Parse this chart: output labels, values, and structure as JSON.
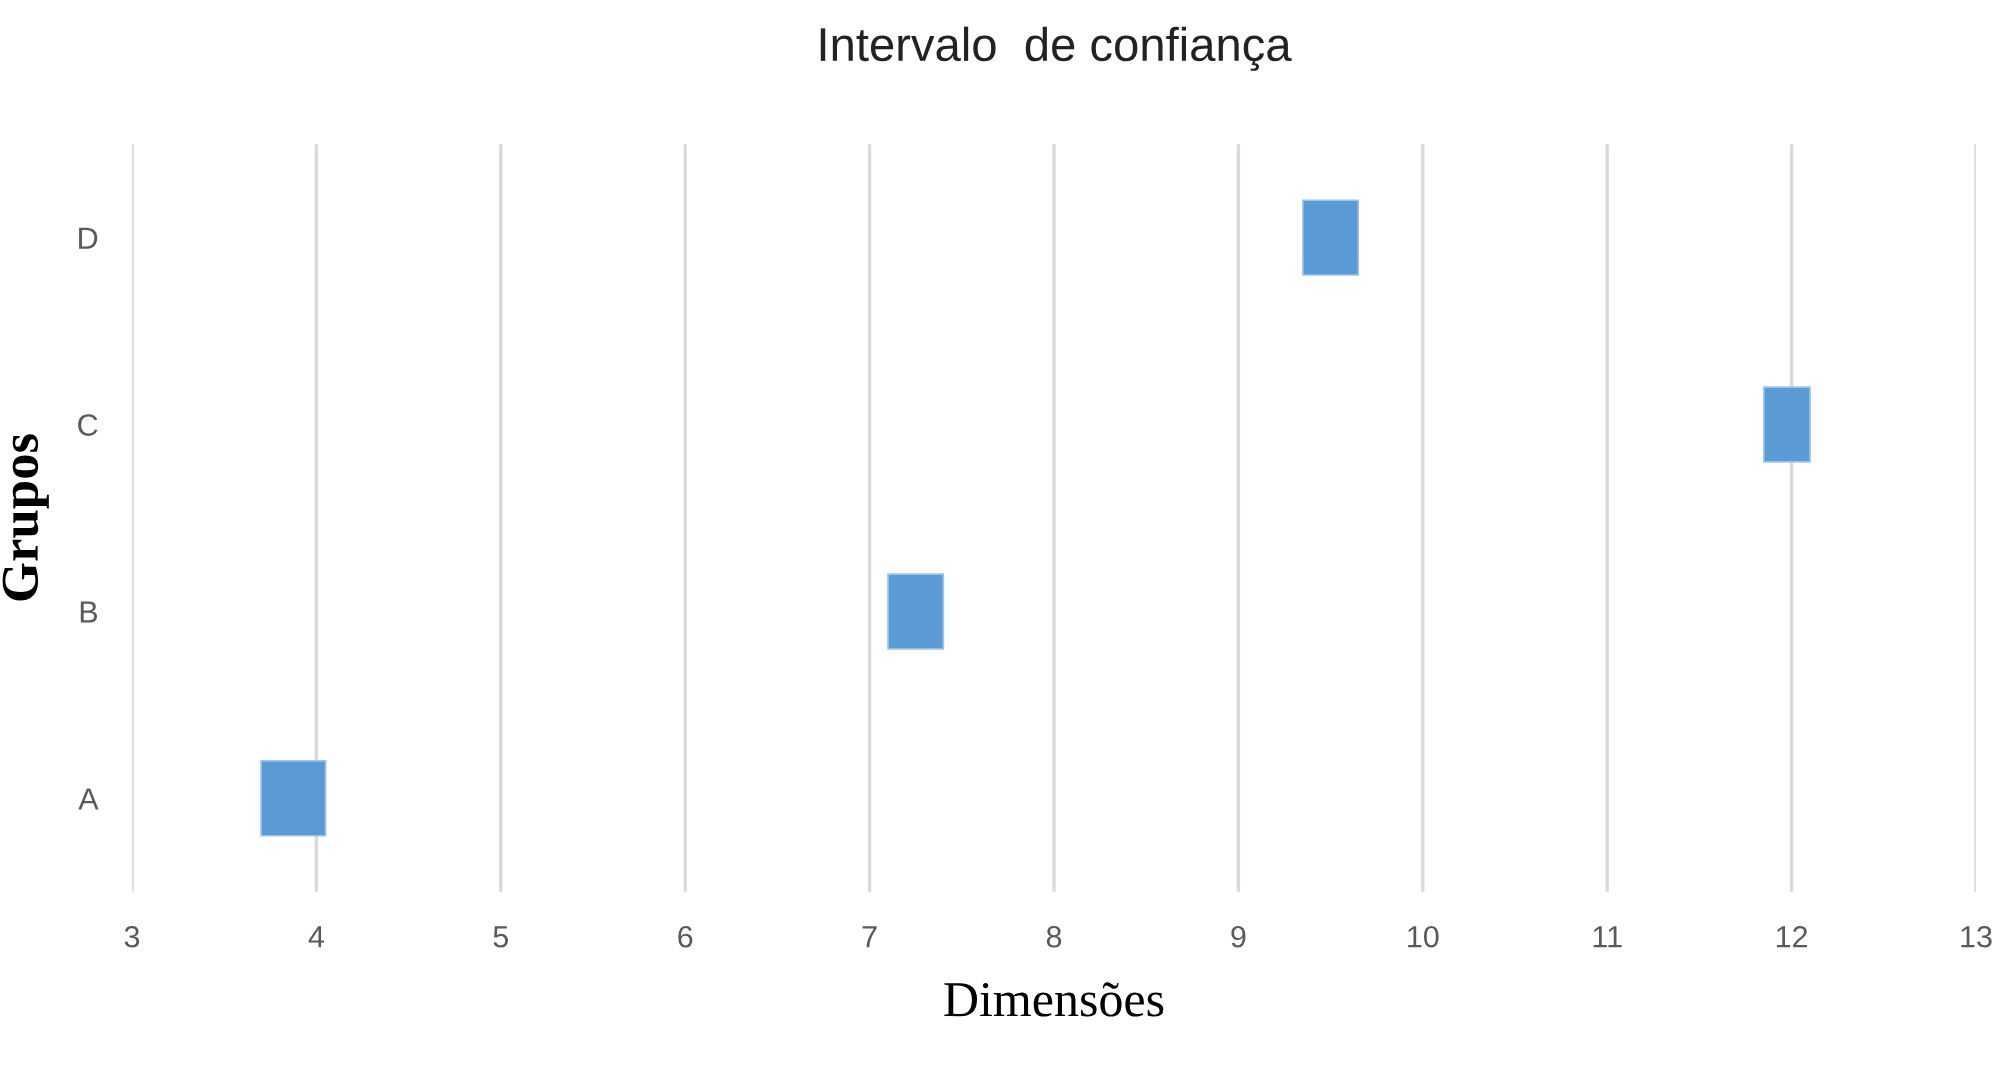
{
  "chart_data": {
    "type": "bar",
    "orientation": "horizontal",
    "title": "Intervalo  de confiança",
    "xlabel": "Dimensões",
    "ylabel": "Grupos",
    "categories": [
      "D",
      "C",
      "B",
      "A"
    ],
    "base": [
      9.35,
      11.85,
      7.1,
      3.7
    ],
    "values": [
      0.3,
      0.25,
      0.3,
      0.35
    ],
    "color": "#5b9bd5",
    "xlim": [
      3,
      13
    ],
    "xticks": [
      3,
      4,
      5,
      6,
      7,
      8,
      9,
      10,
      11,
      12,
      13
    ],
    "grid": "x",
    "legend": false
  }
}
